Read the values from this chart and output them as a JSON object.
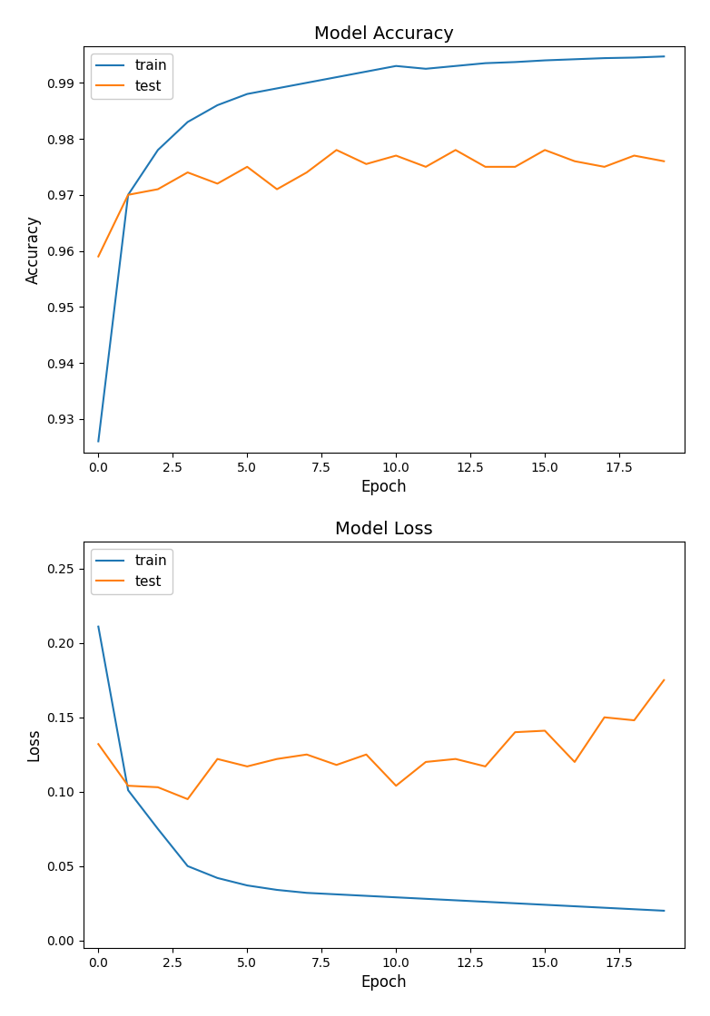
{
  "epochs": 20,
  "acc_train": [
    0.926,
    0.97,
    0.978,
    0.983,
    0.986,
    0.988,
    0.989,
    0.99,
    0.991,
    0.992,
    0.993,
    0.9925,
    0.993,
    0.9935,
    0.9937,
    0.994,
    0.9942,
    0.9944,
    0.9945,
    0.9947
  ],
  "acc_test": [
    0.959,
    0.97,
    0.971,
    0.974,
    0.972,
    0.975,
    0.971,
    0.974,
    0.978,
    0.9755,
    0.977,
    0.975,
    0.978,
    0.975,
    0.975,
    0.978,
    0.976,
    0.975,
    0.977,
    0.976
  ],
  "loss_train": [
    0.211,
    0.101,
    0.075,
    0.05,
    0.042,
    0.037,
    0.034,
    0.032,
    0.031,
    0.03,
    0.029,
    0.028,
    0.027,
    0.026,
    0.025,
    0.024,
    0.023,
    0.022,
    0.021,
    0.02
  ],
  "loss_test": [
    0.132,
    0.104,
    0.103,
    0.095,
    0.122,
    0.117,
    0.122,
    0.125,
    0.118,
    0.125,
    0.104,
    0.12,
    0.122,
    0.117,
    0.14,
    0.141,
    0.12,
    0.15,
    0.148,
    0.175
  ],
  "train_color": "#1f77b4",
  "test_color": "#ff7f0e",
  "bg_color": "#ffffff",
  "title_acc": "Model Accuracy",
  "title_loss": "Model Loss",
  "xlabel": "Epoch",
  "ylabel_acc": "Accuracy",
  "ylabel_loss": "Loss",
  "acc_ylim": [
    0.924,
    0.9965
  ],
  "loss_ylim": [
    -0.005,
    0.268
  ],
  "xticks": [
    0.0,
    2.5,
    5.0,
    7.5,
    10.0,
    12.5,
    15.0,
    17.5
  ],
  "figsize": [
    7.82,
    11.2
  ],
  "dpi": 100
}
